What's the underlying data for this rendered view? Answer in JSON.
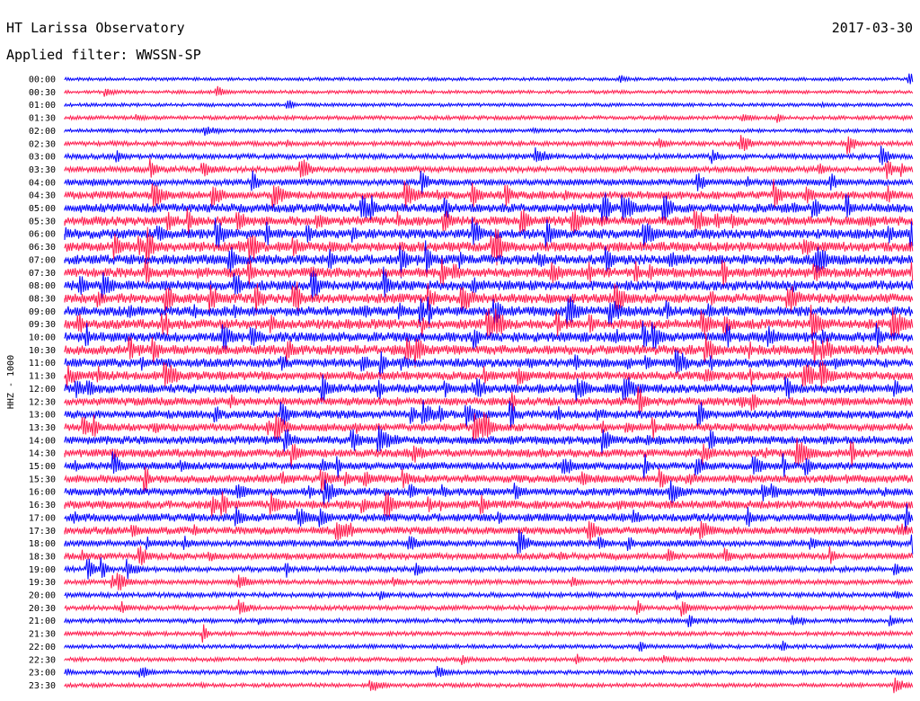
{
  "header": {
    "station": "HT Larissa Observatory",
    "date": "2017-03-30",
    "filter_text": "Applied filter: WWSSN-SP"
  },
  "chart_data": {
    "type": "line",
    "title": "HT Larissa Observatory",
    "subtitle": "Applied filter: WWSSN-SP",
    "ylabel": "HHZ - 1000",
    "date": "2017-03-30",
    "row_labels": [
      "00:00",
      "00:30",
      "01:00",
      "01:30",
      "02:00",
      "02:30",
      "03:00",
      "03:30",
      "04:00",
      "04:30",
      "05:00",
      "05:30",
      "06:00",
      "06:30",
      "07:00",
      "07:30",
      "08:00",
      "08:30",
      "09:00",
      "09:30",
      "10:00",
      "10:30",
      "11:00",
      "11:30",
      "12:00",
      "12:30",
      "13:00",
      "13:30",
      "14:00",
      "14:30",
      "15:00",
      "15:30",
      "16:00",
      "16:30",
      "17:00",
      "17:30",
      "18:00",
      "18:30",
      "19:00",
      "19:30",
      "20:00",
      "20:30",
      "21:00",
      "21:30",
      "22:00",
      "22:30",
      "23:00",
      "23:30"
    ],
    "colors": [
      "#0000ff",
      "#ff1a4d"
    ],
    "row_activity": [
      0.08,
      0.1,
      0.1,
      0.18,
      0.14,
      0.3,
      0.35,
      0.45,
      0.55,
      0.75,
      0.9,
      0.95,
      1.0,
      1.0,
      1.0,
      1.0,
      1.0,
      1.0,
      1.0,
      1.0,
      1.0,
      1.0,
      0.9,
      0.85,
      0.9,
      0.8,
      0.8,
      0.75,
      0.8,
      0.8,
      0.7,
      0.75,
      0.75,
      0.8,
      0.75,
      0.7,
      0.55,
      0.55,
      0.4,
      0.3,
      0.3,
      0.28,
      0.25,
      0.22,
      0.2,
      0.2,
      0.22,
      0.2
    ]
  }
}
